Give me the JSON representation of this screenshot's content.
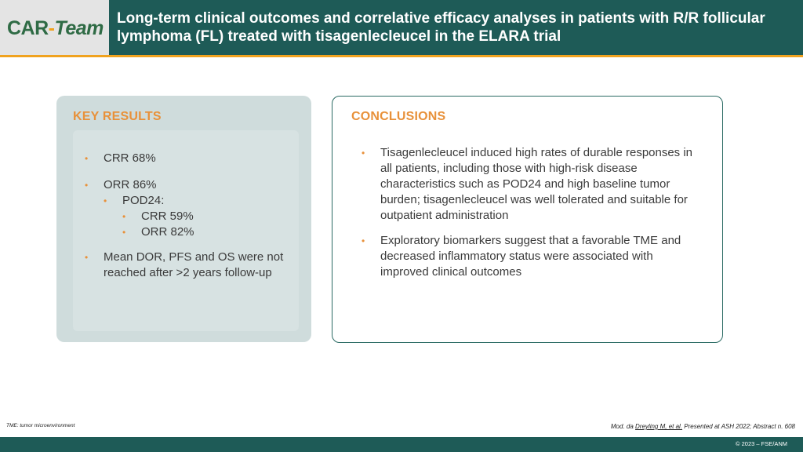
{
  "header": {
    "logo": {
      "first": "CAR",
      "dash": "-",
      "rest": "Team"
    },
    "title": "Long-term clinical outcomes and correlative efficacy analyses in patients with R/R follicular lymphoma (FL) treated with tisagenlecleucel in the ELARA trial"
  },
  "key_results": {
    "heading": "KEY RESULTS",
    "items": [
      "CRR 68%",
      "ORR 86%",
      "POD24:",
      "CRR 59%",
      "ORR 82%",
      "Mean DOR, PFS and OS were not reached after >2 years follow-up"
    ]
  },
  "conclusions": {
    "heading": "CONCLUSIONS",
    "items": [
      "Tisagenlecleucel induced high rates of durable responses in all patients, including those with high-risk disease characteristics such as POD24 and high baseline tumor burden; tisagenlecleucel was well tolerated and suitable for outpatient administration",
      "Exploratory biomarkers suggest that a favorable TME and decreased inflammatory status were associated with improved clinical outcomes"
    ]
  },
  "footer": {
    "abbreviation": "TME: tumor microenvironment",
    "reference_prefix": "Mod. da ",
    "reference_author": "Dreyling M, et al.",
    "reference_suffix": " Presented at ASH 2022; Abstract n. 608",
    "copyright": "© 2023 – FSE/ANM"
  },
  "colors": {
    "header_bg": "#1e5b57",
    "accent": "#e8913a",
    "logo_green": "#2f6b45",
    "card_fill": "#cfdcdc"
  }
}
